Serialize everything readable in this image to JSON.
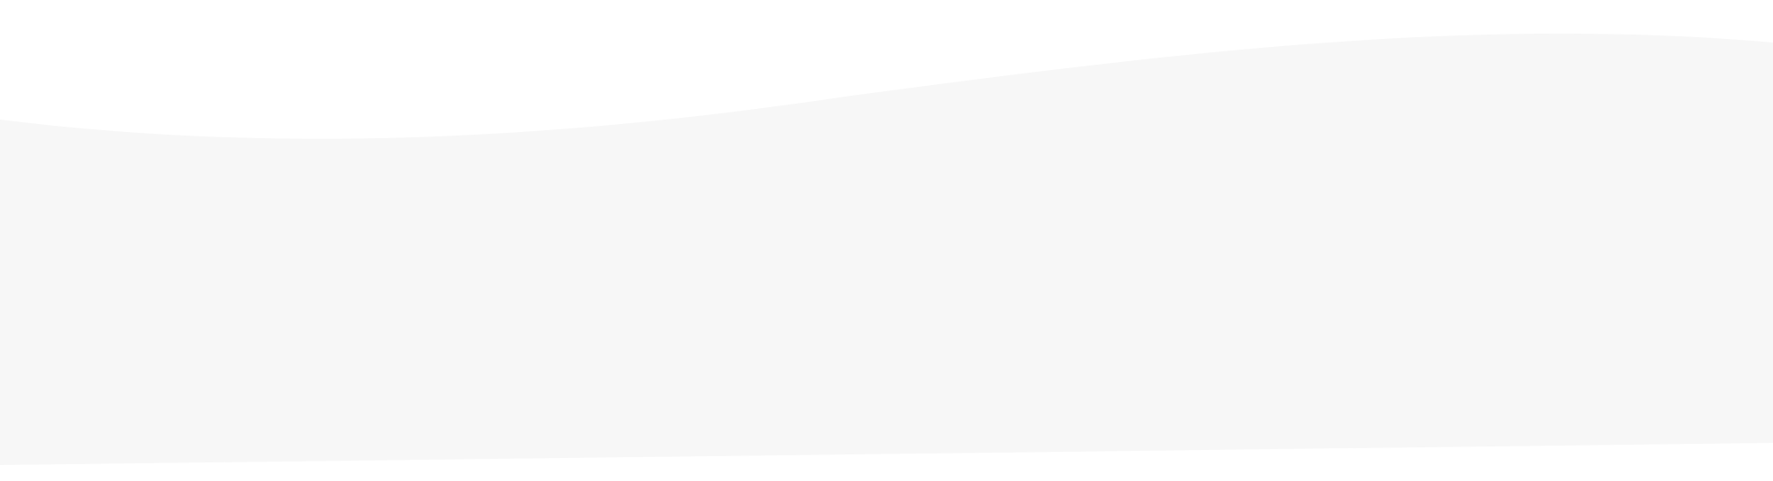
{
  "colors": {
    "background": "#ffffff",
    "wave_fill": "#f7f7f7"
  }
}
